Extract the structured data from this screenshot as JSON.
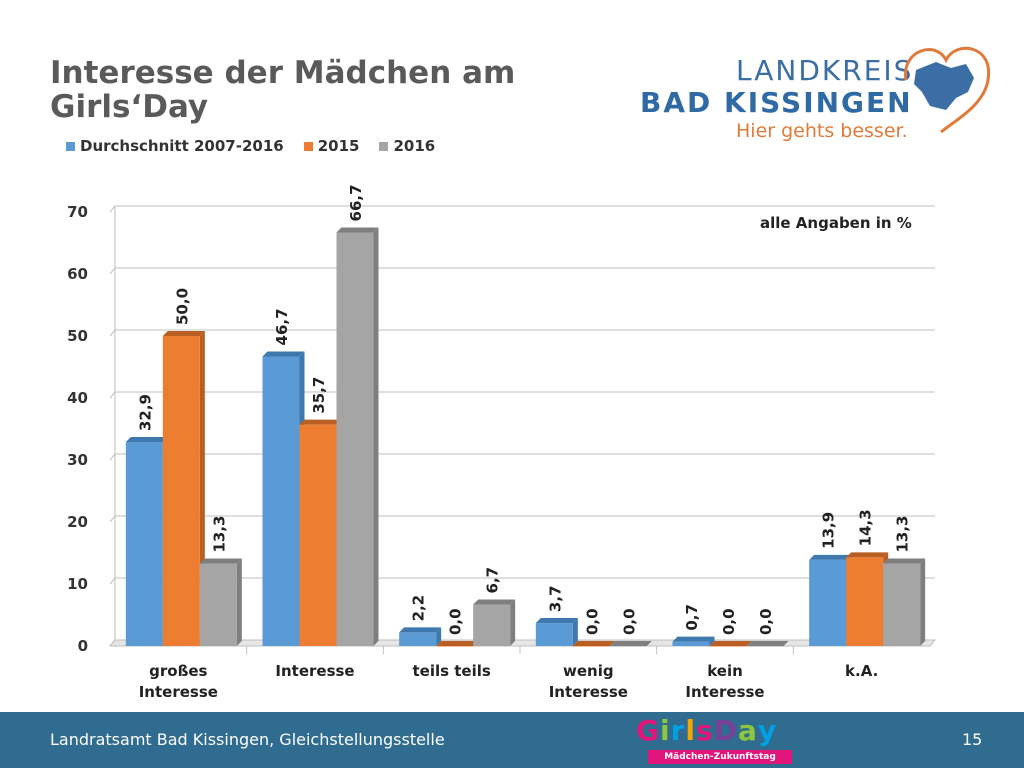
{
  "slide": {
    "title_line1": "Interesse der Mädchen am",
    "title_line2": "Girls‘Day",
    "note": "alle Angaben in %",
    "footer_text": "Landratsamt Bad Kissingen, Gleichstellungsstelle",
    "page_number": "15"
  },
  "logo": {
    "line1": "LANDKREIS",
    "line2": "BAD KISSINGEN",
    "tagline": "Hier gehts besser."
  },
  "girlsday_logo": {
    "word": "GirlsDay",
    "subtitle": "Mädchen-Zukunftstag"
  },
  "colors": {
    "series1": "#5b9bd5",
    "series2": "#ed7d31",
    "series3": "#a5a5a5",
    "footer": "#2f6c8f",
    "title": "#5a5a5a"
  },
  "chart_data": {
    "type": "bar",
    "categories": [
      [
        "großes",
        "Interesse"
      ],
      [
        "Interesse"
      ],
      [
        "teils teils"
      ],
      [
        "wenig",
        "Interesse"
      ],
      [
        "kein",
        "Interesse"
      ],
      [
        "k.A."
      ]
    ],
    "series": [
      {
        "name": "Durchschnitt 2007-2016",
        "values": [
          32.9,
          46.7,
          2.2,
          3.7,
          0.7,
          13.9
        ],
        "labels": [
          "32,9",
          "46,7",
          "2,2",
          "3,7",
          "0,7",
          "13,9"
        ]
      },
      {
        "name": "2015",
        "values": [
          50.0,
          35.7,
          0.0,
          0.0,
          0.0,
          14.3
        ],
        "labels": [
          "50,0",
          "35,7",
          "0,0",
          "0,0",
          "0,0",
          "14,3"
        ]
      },
      {
        "name": "2016",
        "values": [
          13.3,
          66.7,
          6.7,
          0.0,
          0.0,
          13.3
        ],
        "labels": [
          "13,3",
          "66,7",
          "6,7",
          "0,0",
          "0,0",
          "13,3"
        ]
      }
    ],
    "yticks": [
      "0",
      "10",
      "20",
      "30",
      "40",
      "50",
      "60",
      "70"
    ],
    "ylim": [
      0,
      70
    ],
    "grid": true,
    "legend": "top-left",
    "note": "alle Angaben in %"
  }
}
